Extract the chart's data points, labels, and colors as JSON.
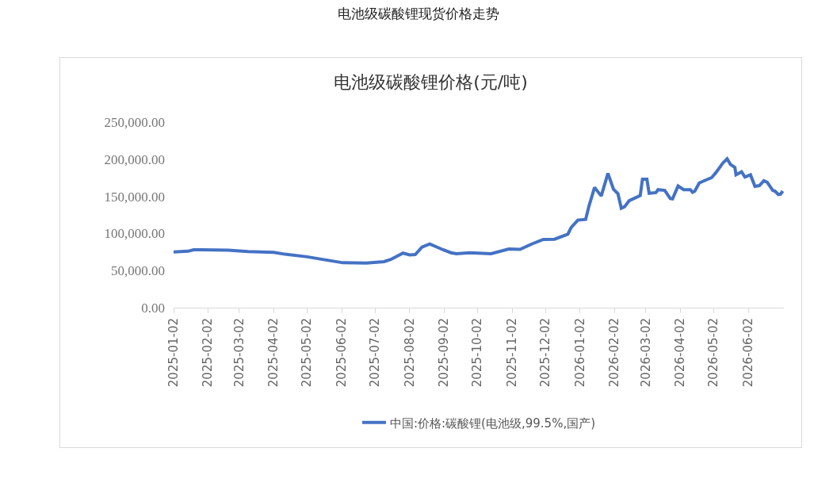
{
  "chart_data": {
    "type": "line",
    "title": "电池级碳酸锂现货价格走势",
    "subtitle": "电池级碳酸锂价格(元/吨)",
    "series": [
      {
        "name": "中国:价格:碳酸锂(电池级,99.5%,国产)",
        "color": "#4472c4",
        "x": [
          "2025-01-02",
          "2025-01-15",
          "2025-01-20",
          "2025-02-20",
          "2025-03-10",
          "2025-04-02",
          "2025-04-12",
          "2025-05-02",
          "2025-05-20",
          "2025-06-03",
          "2025-06-24",
          "2025-07-10",
          "2025-07-16",
          "2025-07-27",
          "2025-08-02",
          "2025-08-07",
          "2025-08-13",
          "2025-08-20",
          "2025-09-01",
          "2025-09-08",
          "2025-09-13",
          "2025-09-25",
          "2025-10-14",
          "2025-10-30",
          "2025-11-09",
          "2025-11-20",
          "2025-11-30",
          "2025-12-10",
          "2025-12-22",
          "2025-12-25",
          "2025-12-31",
          "2026-01-07",
          "2026-01-10",
          "2026-01-15",
          "2026-01-21",
          "2026-01-27",
          "2026-02-01",
          "2026-02-05",
          "2026-02-08",
          "2026-02-11",
          "2026-02-15",
          "2026-02-25",
          "2026-02-27",
          "2026-03-03",
          "2026-03-05",
          "2026-03-11",
          "2026-03-13",
          "2026-03-19",
          "2026-03-24",
          "2026-03-26",
          "2026-03-31",
          "2026-04-05",
          "2026-04-11",
          "2026-04-13",
          "2026-04-15",
          "2026-04-19",
          "2026-04-25",
          "2026-04-30",
          "2026-05-04",
          "2026-05-10",
          "2026-05-14",
          "2026-05-17",
          "2026-05-21",
          "2026-05-22",
          "2026-05-27",
          "2026-05-30",
          "2026-06-04",
          "2026-06-08",
          "2026-06-12",
          "2026-06-16",
          "2026-06-19",
          "2026-06-24",
          "2026-06-26",
          "2026-06-29",
          "2026-07-01",
          "2026-07-03"
        ],
        "values": [
          75000,
          76000,
          78000,
          77500,
          75500,
          74500,
          72000,
          68500,
          64000,
          60500,
          60000,
          62000,
          65000,
          73500,
          71000,
          71500,
          81500,
          85800,
          78000,
          74000,
          72600,
          74000,
          72600,
          79000,
          78500,
          86000,
          92000,
          92200,
          99000,
          108000,
          118000,
          119000,
          137000,
          162000,
          150500,
          181000,
          159500,
          153500,
          134000,
          136000,
          144000,
          151000,
          173000,
          173000,
          154000,
          155000,
          159000,
          158000,
          147000,
          146500,
          164000,
          159000,
          159000,
          155500,
          157000,
          168000,
          172000,
          175000,
          182000,
          194500,
          200500,
          193000,
          189000,
          179000,
          183000,
          176000,
          179000,
          163500,
          164500,
          171000,
          169000,
          158000,
          157000,
          152500,
          153000,
          157000
        ]
      }
    ],
    "xlim": [
      "2025-01-02",
      "2026-07-04"
    ],
    "xticks": [
      "2025-01-02",
      "2025-02-02",
      "2025-03-02",
      "2025-04-02",
      "2025-05-02",
      "2025-06-02",
      "2025-07-02",
      "2025-08-02",
      "2025-09-02",
      "2025-10-02",
      "2025-11-02",
      "2025-12-02",
      "2026-01-02",
      "2026-02-02",
      "2026-03-02",
      "2026-04-02",
      "2026-05-02",
      "2026-06-02"
    ],
    "ylim": [
      0,
      250000
    ],
    "yticks": [
      {
        "value": 0,
        "label": "0.00"
      },
      {
        "value": 50000,
        "label": "50,000.00"
      },
      {
        "value": 100000,
        "label": "100,000.00"
      },
      {
        "value": 150000,
        "label": "150,000.00"
      },
      {
        "value": 200000,
        "label": "200,000.00"
      },
      {
        "value": 250000,
        "label": "250,000.00"
      }
    ],
    "grid": false,
    "legend": "bottom",
    "marker": "none",
    "line_style": "solid"
  }
}
